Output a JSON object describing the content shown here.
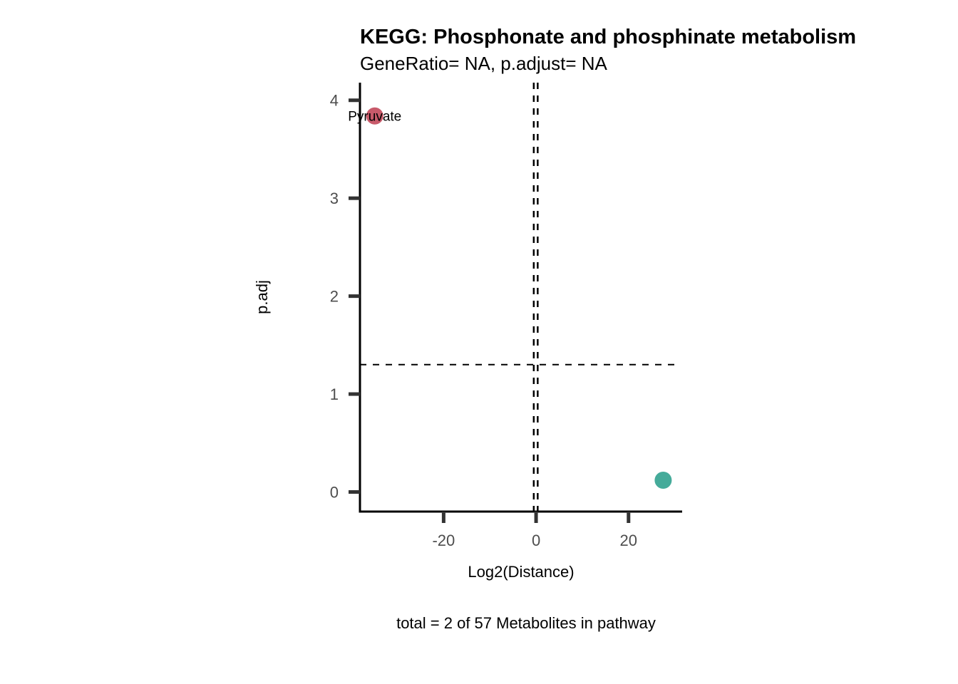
{
  "chart_data": {
    "type": "scatter",
    "title": "KEGG: Phosphonate and phosphinate metabolism",
    "subtitle": "GeneRatio= NA, p.adjust= NA",
    "xlabel": "Log2(Distance)",
    "ylabel": "p.adj",
    "caption": "total = 2 of 57 Metabolites in pathway",
    "xlim": [
      -38.1,
      31.6
    ],
    "ylim": [
      -0.2,
      4.18
    ],
    "xticks": [
      {
        "value": -20,
        "label": "-20"
      },
      {
        "value": 0,
        "label": "0"
      },
      {
        "value": 20,
        "label": "20"
      }
    ],
    "yticks": [
      {
        "value": 0,
        "label": "0"
      },
      {
        "value": 1,
        "label": "1"
      },
      {
        "value": 2,
        "label": "2"
      },
      {
        "value": 3,
        "label": "3"
      },
      {
        "value": 4,
        "label": "4"
      }
    ],
    "grid": false,
    "reference_lines": {
      "horizontal": [
        1.301
      ],
      "vertical": [
        -0.5,
        0.35
      ]
    },
    "points": [
      {
        "x": -34.9,
        "y": 3.84,
        "label": "Pyruvate",
        "color": "#C85A6A"
      },
      {
        "x": 27.5,
        "y": 0.12,
        "label": "",
        "color": "#45AB9A"
      }
    ]
  }
}
